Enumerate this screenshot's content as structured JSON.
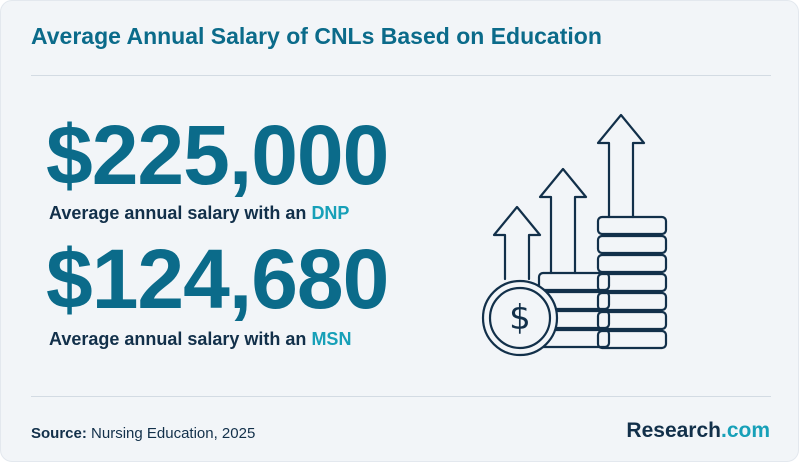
{
  "header": {
    "title": "Average Annual Salary of CNLs Based on Education"
  },
  "stats": [
    {
      "value": "$225,000",
      "caption_prefix": "Average annual salary with an ",
      "degree": "DNP"
    },
    {
      "value": "$124,680",
      "caption_prefix": "Average annual salary with an ",
      "degree": "MSN"
    }
  ],
  "footer": {
    "source_label": "Source:",
    "source_text": " Nursing Education, 2025",
    "brand_name": "Research",
    "brand_suffix": ".com"
  },
  "illustration": {
    "icon": "coin-stacks-rising-arrows-icon",
    "coin_symbol": "$"
  },
  "colors": {
    "primary": "#0b6b8a",
    "accent": "#17a0b8",
    "text": "#12304a",
    "background": "#f2f5f8"
  }
}
